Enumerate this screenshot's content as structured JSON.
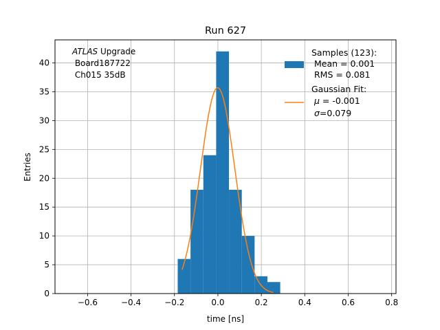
{
  "chart_data": {
    "type": "bar",
    "title": "Run 627",
    "xlabel": "time [ns]",
    "ylabel": "Entries",
    "xlim": [
      -0.75,
      0.82
    ],
    "ylim": [
      0,
      44
    ],
    "xticks": [
      -0.6,
      -0.4,
      -0.2,
      0.0,
      0.2,
      0.4,
      0.6,
      0.8
    ],
    "xtick_labels": [
      "−0.6",
      "−0.4",
      "−0.2",
      "0.0",
      "0.2",
      "0.4",
      "0.6",
      "0.8"
    ],
    "yticks": [
      0,
      5,
      10,
      15,
      20,
      25,
      30,
      35,
      40
    ],
    "yticks_labels": [
      "0",
      "5",
      "10",
      "15",
      "20",
      "25",
      "30",
      "35",
      "40"
    ],
    "grid": true,
    "histogram": {
      "bin_edges": [
        -0.185,
        -0.126,
        -0.067,
        -0.008,
        0.051,
        0.11,
        0.169,
        0.228,
        0.287
      ],
      "counts": [
        6,
        18,
        24,
        42,
        18,
        10,
        3,
        2
      ],
      "color": "#1f77b4"
    },
    "fit": {
      "mu": -0.001,
      "sigma": 0.079,
      "amplitude": 35.7,
      "x_range": [
        -0.165,
        0.255
      ],
      "color": "#ff7f0e"
    },
    "annotation": {
      "line1_italic": "ATLAS",
      "line1_rest": " Upgrade",
      "line2": " Board187722",
      "line3": " Ch015 35dB"
    },
    "legend": {
      "position": "top-right",
      "samples": {
        "line1": "Samples (123):",
        "line2": " Mean = 0.001",
        "line3": " RMS = 0.081"
      },
      "fit": {
        "line1": "Gaussian Fit:",
        "mu_prefix": " μ = ",
        "mu_value": "-0.001",
        "sigma_prefix": " σ",
        "sigma_value": "=0.079"
      }
    }
  }
}
